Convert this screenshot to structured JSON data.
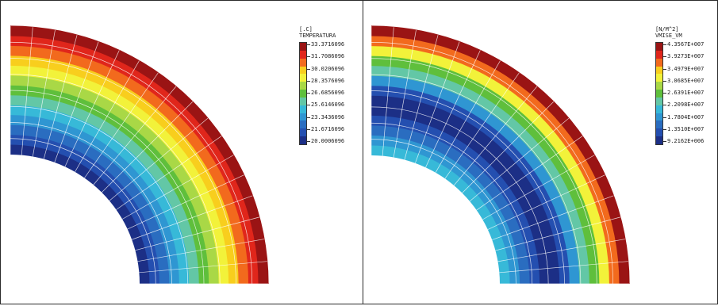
{
  "panels": [
    {
      "id": "temperature",
      "unit": "[.C]",
      "title": "TEMPERATURA",
      "labels": [
        "33.3716096",
        "31.7086096",
        "30.0206096",
        "28.3576096",
        "26.6856096",
        "25.6146096",
        "23.3436096",
        "21.6716096",
        "20.0006096"
      ],
      "colors": [
        "#9a1414",
        "#e0261b",
        "#f26a1d",
        "#f8ce1d",
        "#f2f23a",
        "#a9d846",
        "#5fbf3c",
        "#63c7a6",
        "#37b9d8",
        "#2f96d2",
        "#2a6dc0",
        "#244fb0",
        "#1c2f86"
      ],
      "ring_colors": [
        "#1c2f86",
        "#244fb0",
        "#2a6dc0",
        "#2f96d2",
        "#37b9d8",
        "#63c7a6",
        "#5fbf3c",
        "#a9d846",
        "#f2f23a",
        "#f8ce1d",
        "#f26a1d",
        "#e0261b",
        "#9a1414"
      ]
    },
    {
      "id": "von-mises",
      "unit": "[N/M^2]",
      "title": "VMISE_VM",
      "labels": [
        "4.3567E+007",
        "3.9273E+007",
        "3.4979E+007",
        "3.0685E+007",
        "2.6391E+007",
        "2.2098E+007",
        "1.7804E+007",
        "1.3510E+007",
        "9.2162E+006"
      ],
      "colors": [
        "#9a1414",
        "#e0261b",
        "#f26a1d",
        "#f8ce1d",
        "#f2f23a",
        "#a9d846",
        "#5fbf3c",
        "#63c7a6",
        "#37b9d8",
        "#2f96d2",
        "#2a6dc0",
        "#244fb0",
        "#1c2f86"
      ],
      "ring_colors": [
        "#37b9d8",
        "#2f96d2",
        "#2a6dc0",
        "#244fb0",
        "#1c2f86",
        "#1c2f86",
        "#244fb0",
        "#2f96d2",
        "#63c7a6",
        "#5fbf3c",
        "#f2f23a",
        "#f26a1d",
        "#9a1414"
      ]
    }
  ]
}
